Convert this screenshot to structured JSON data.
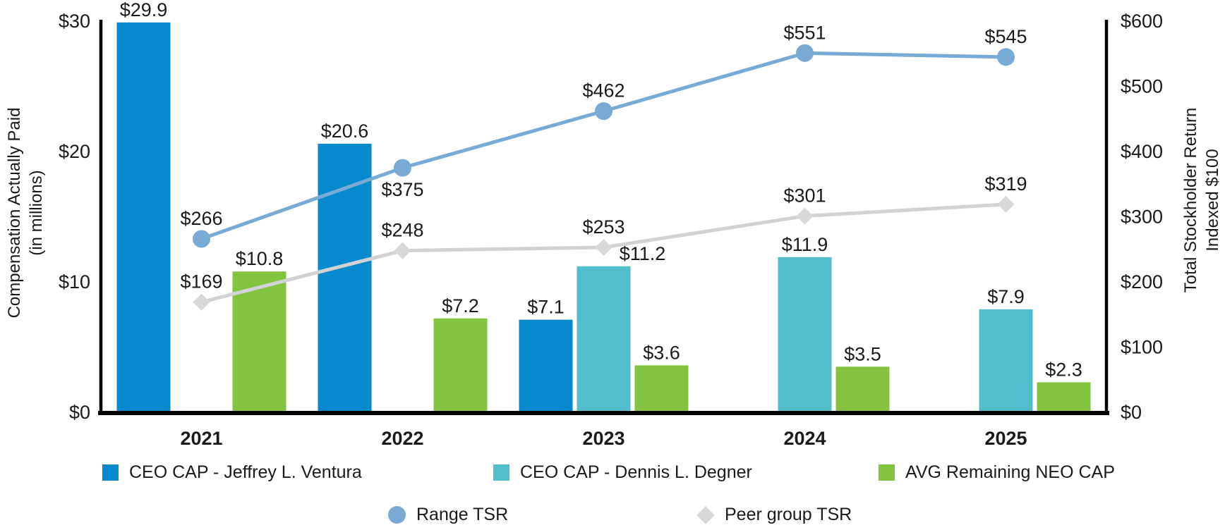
{
  "chart_data": {
    "type": "combo bar+line, dual axis",
    "categories": [
      "2021",
      "2022",
      "2023",
      "2024",
      "2025"
    ],
    "bar_series": [
      {
        "name": "CEO CAP - Jeffrey L. Ventura",
        "color": "#0789cd",
        "values": [
          29.9,
          20.6,
          7.1,
          null,
          null
        ],
        "labels": [
          "$29.9",
          "$20.6",
          "$7.1",
          null,
          null
        ],
        "label_dx": [
          0,
          0,
          0,
          0,
          0
        ]
      },
      {
        "name": "CEO CAP - Dennis L. Degner",
        "color": "#52becb",
        "values": [
          null,
          null,
          11.2,
          11.9,
          7.9
        ],
        "labels": [
          null,
          null,
          "$11.2",
          "$11.9",
          "$7.9"
        ],
        "label_dx": [
          0,
          0,
          55,
          0,
          0
        ]
      },
      {
        "name": "AVG Remaining NEO CAP",
        "color": "#84c340",
        "values": [
          10.8,
          7.2,
          3.6,
          3.5,
          2.3
        ],
        "labels": [
          "$10.8",
          "$7.2",
          "$3.6",
          "$3.5",
          "$2.3"
        ],
        "label_dx": [
          0,
          0,
          0,
          0,
          0
        ]
      }
    ],
    "line_series": [
      {
        "name": "Range TSR",
        "marker": "circle",
        "line_color": "#79aad6",
        "marker_color": "#79aad6",
        "values": [
          266,
          375,
          462,
          551,
          545
        ],
        "labels": [
          "$266",
          "$375",
          "$462",
          "$551",
          "$545"
        ],
        "label_side": [
          "above",
          "below",
          "above",
          "above",
          "above"
        ]
      },
      {
        "name": "Peer group TSR",
        "marker": "diamond",
        "line_color": "#d2d2d2",
        "marker_color": "#d8d8d8",
        "values": [
          169,
          248,
          253,
          301,
          319
        ],
        "labels": [
          "$169",
          "$248",
          "$253",
          "$301",
          "$319"
        ],
        "label_side": [
          "above",
          "above",
          "above",
          "above",
          "above"
        ]
      }
    ],
    "left_axis": {
      "title_lines": [
        "Compensation Actually Paid",
        "(in millions)"
      ],
      "max": 30,
      "ticks": [
        {
          "label": "$0",
          "value": 0
        },
        {
          "label": "$10",
          "value": 10
        },
        {
          "label": "$20",
          "value": 20
        },
        {
          "label": "$30",
          "value": 30
        }
      ]
    },
    "right_axis": {
      "title_lines": [
        "Total Stockholder Return",
        "Indexed $100"
      ],
      "max": 600,
      "ticks": [
        {
          "label": "$0",
          "value": 0
        },
        {
          "label": "$100",
          "value": 100
        },
        {
          "label": "$200",
          "value": 200
        },
        {
          "label": "$300",
          "value": 300
        },
        {
          "label": "$400",
          "value": 400
        },
        {
          "label": "$500",
          "value": 500
        },
        {
          "label": "$600",
          "value": 600
        }
      ]
    }
  },
  "colors": {
    "axis_line": "#000000",
    "text": "#1a1a1a"
  }
}
